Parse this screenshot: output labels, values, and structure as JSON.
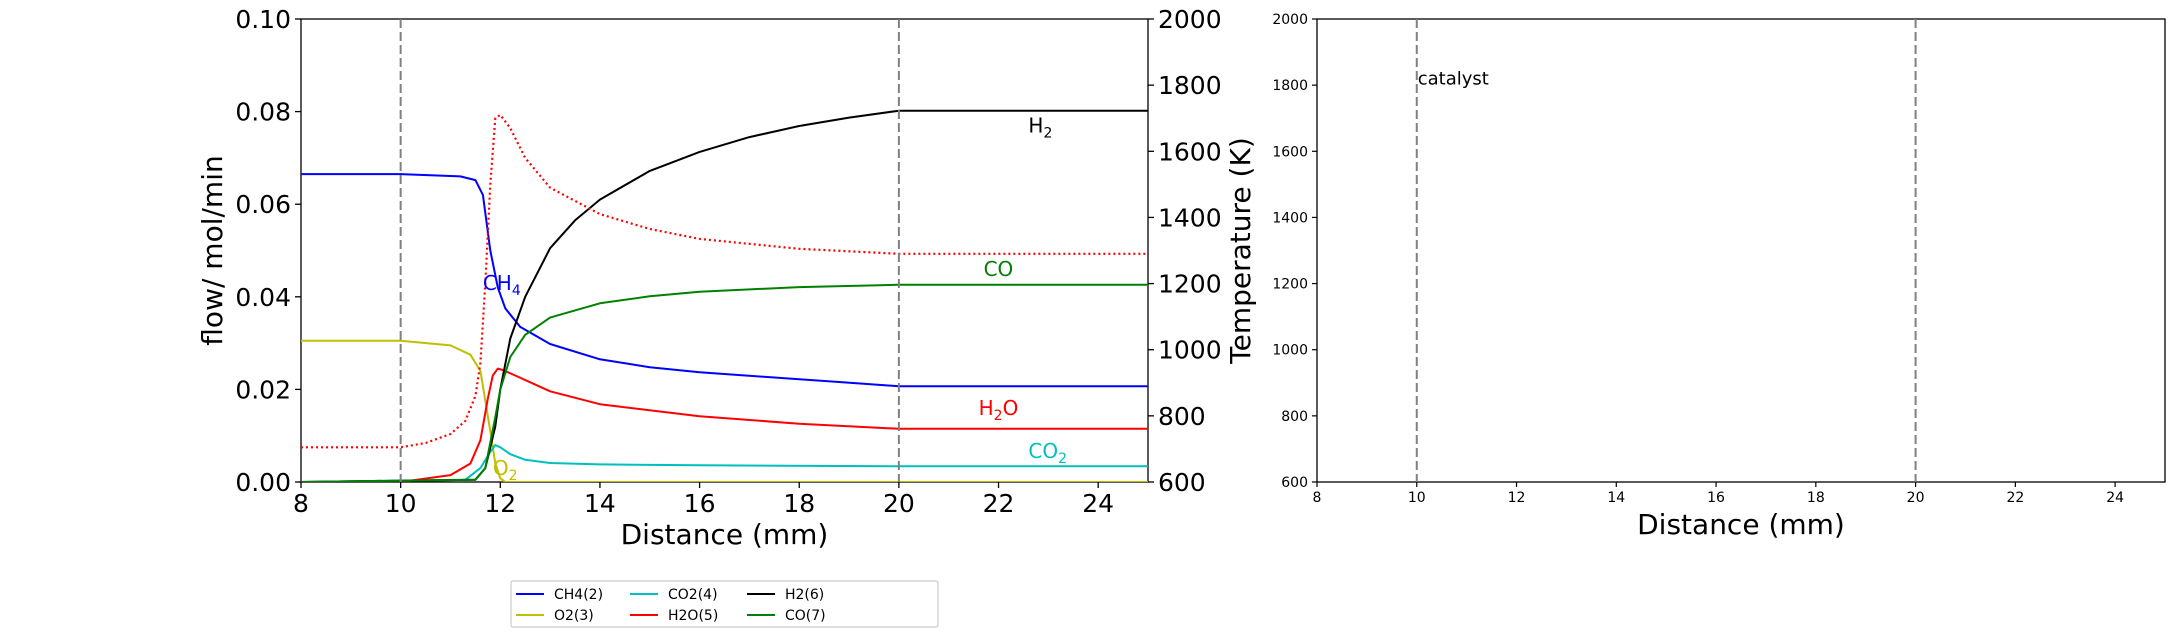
{
  "chart_data": [
    {
      "type": "line",
      "xlabel": "Distance (mm)",
      "ylabel": "flow/ mol/min",
      "y2label": "Temperature (K)",
      "xlim": [
        8,
        25
      ],
      "ylim": [
        0,
        0.1
      ],
      "y2lim": [
        600,
        2000
      ],
      "xticks": [
        "8",
        "10",
        "12",
        "14",
        "16",
        "18",
        "20",
        "22",
        "24"
      ],
      "yticks": [
        "0.00",
        "0.02",
        "0.04",
        "0.06",
        "0.08",
        "0.10"
      ],
      "y2ticks": [
        "600",
        "800",
        "1000",
        "1200",
        "1400",
        "1600",
        "1800",
        "2000"
      ],
      "vlines": [
        10,
        20
      ],
      "series": [
        {
          "name": "CH4(2)",
          "color": "#0000ff",
          "x": [
            8,
            10,
            11.2,
            11.5,
            11.65,
            11.8,
            11.95,
            12.1,
            12.4,
            13,
            14,
            15,
            16,
            18,
            20,
            25
          ],
          "values": [
            0.0665,
            0.0665,
            0.066,
            0.0652,
            0.062,
            0.05,
            0.042,
            0.0375,
            0.0335,
            0.0298,
            0.0265,
            0.0248,
            0.0237,
            0.0222,
            0.0207,
            0.0207
          ]
        },
        {
          "name": "O2(3)",
          "color": "#bfbf00",
          "x": [
            8,
            10,
            11,
            11.4,
            11.6,
            11.8,
            11.9,
            12,
            12.1,
            25
          ],
          "values": [
            0.0305,
            0.0305,
            0.0295,
            0.0275,
            0.024,
            0.011,
            0.004,
            0.0008,
            0,
            0
          ]
        },
        {
          "name": "CO2(4)",
          "color": "#00bfbf",
          "x": [
            8,
            11.3,
            11.6,
            11.8,
            11.9,
            12,
            12.2,
            12.5,
            13,
            14,
            16,
            20,
            25
          ],
          "values": [
            0,
            0.0005,
            0.003,
            0.0065,
            0.008,
            0.0075,
            0.006,
            0.0048,
            0.0041,
            0.0038,
            0.0036,
            0.0034,
            0.0034
          ]
        },
        {
          "name": "H2O(5)",
          "color": "#ff0000",
          "x": [
            8,
            10,
            11,
            11.4,
            11.6,
            11.75,
            11.85,
            11.95,
            12.05,
            12.3,
            13,
            14,
            16,
            18,
            20,
            25
          ],
          "values": [
            0,
            0,
            0.0015,
            0.004,
            0.009,
            0.018,
            0.023,
            0.0245,
            0.0242,
            0.023,
            0.0196,
            0.0168,
            0.0142,
            0.0126,
            0.0115,
            0.0115
          ]
        },
        {
          "name": "H2(6)",
          "color": "#000000",
          "x": [
            8,
            11.5,
            11.7,
            11.9,
            12,
            12.2,
            12.5,
            13,
            13.5,
            14,
            15,
            16,
            17,
            18,
            19,
            20,
            25
          ],
          "values": [
            0,
            0.0005,
            0.003,
            0.012,
            0.02,
            0.031,
            0.04,
            0.0505,
            0.0565,
            0.061,
            0.0672,
            0.0713,
            0.0745,
            0.0769,
            0.0787,
            0.0802,
            0.0802
          ]
        },
        {
          "name": "CO(7)",
          "color": "#008000",
          "x": [
            8,
            11.5,
            11.7,
            11.9,
            12,
            12.2,
            12.5,
            13,
            14,
            15,
            16,
            18,
            20,
            25
          ],
          "values": [
            0,
            0.0005,
            0.003,
            0.014,
            0.02,
            0.027,
            0.0318,
            0.0355,
            0.0386,
            0.0401,
            0.0411,
            0.0421,
            0.0426,
            0.0426
          ]
        },
        {
          "name": "Temperature",
          "color": "#ff0000",
          "axis": "y2",
          "dotted": true,
          "x": [
            8,
            10,
            10.5,
            11,
            11.3,
            11.5,
            11.6,
            11.7,
            11.8,
            11.9,
            12,
            12.2,
            12.5,
            13,
            14,
            15,
            16,
            18,
            20,
            25
          ],
          "values": [
            705,
            705,
            718,
            745,
            785,
            860,
            960,
            1200,
            1500,
            1700,
            1710,
            1670,
            1580,
            1490,
            1410,
            1365,
            1335,
            1305,
            1290,
            1290
          ]
        }
      ],
      "annotations": [
        {
          "label": "H",
          "sub": "2",
          "x": 22.6,
          "y": 0.0755,
          "color": "#000000"
        },
        {
          "label": "CO",
          "sub": "",
          "x": 21.7,
          "y": 0.0445,
          "color": "#008000"
        },
        {
          "label": "CH",
          "sub": "4",
          "x": 11.65,
          "y": 0.0415,
          "color": "#0000ff"
        },
        {
          "label": "H",
          "sub": "2",
          "label2": "O",
          "x": 21.6,
          "y": 0.0145,
          "color": "#ff0000"
        },
        {
          "label": "CO",
          "sub": "2",
          "x": 22.6,
          "y": 0.0052,
          "color": "#00bfbf"
        },
        {
          "label": "O",
          "sub": "2",
          "x": 11.85,
          "y": 0.0015,
          "color": "#bfbf00"
        }
      ],
      "legend": {
        "placement": "bottom",
        "entries": [
          "CH4(2)",
          "O2(3)",
          "CO2(4)",
          "H2O(5)",
          "H2(6)",
          "CO(7)"
        ]
      }
    },
    {
      "type": "line",
      "xlabel": "Distance (mm)",
      "ylabel": "",
      "xlim": [
        8,
        25
      ],
      "ylim": [
        600,
        2000
      ],
      "xticks": [
        "8",
        "10",
        "12",
        "14",
        "16",
        "18",
        "20",
        "22",
        "24"
      ],
      "yticks": [
        "600",
        "800",
        "1000",
        "1200",
        "1400",
        "1600",
        "1800",
        "2000"
      ],
      "vlines": [
        10,
        20
      ],
      "annotations": [
        {
          "label": "catalyst",
          "x": 10,
          "y": 1820
        }
      ],
      "series": []
    }
  ]
}
